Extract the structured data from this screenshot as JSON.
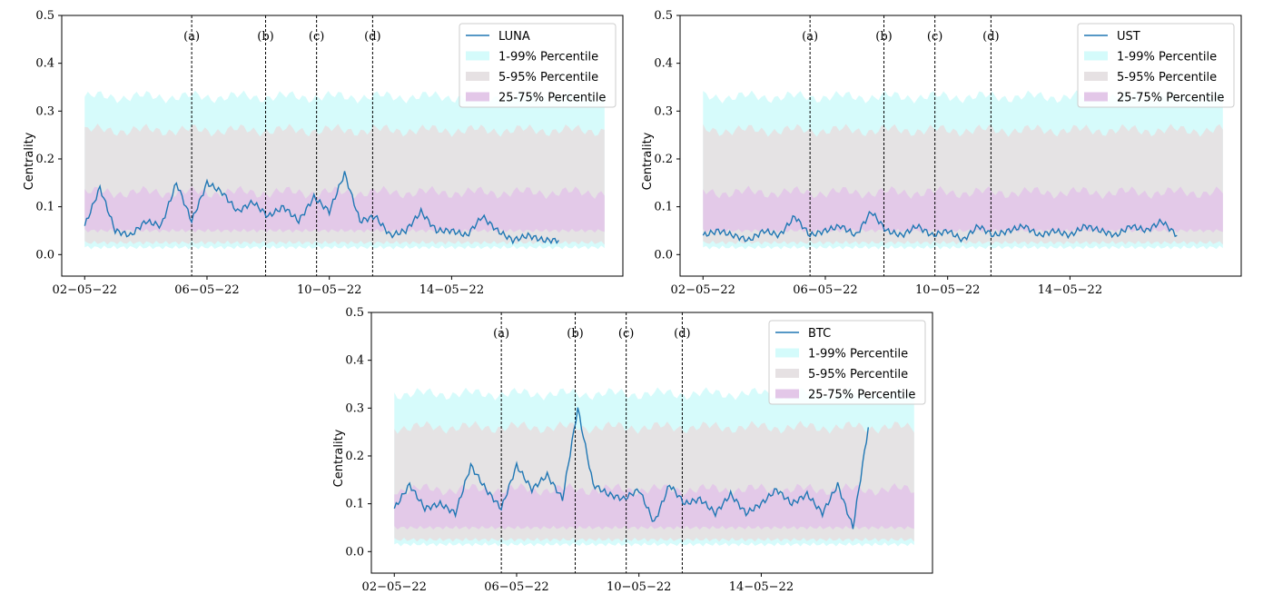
{
  "chart_data": [
    {
      "type": "line",
      "ylabel": "Centrality",
      "ylim": [
        0.0,
        0.5
      ],
      "xlim_days": [
        0,
        17
      ],
      "yticks": [
        "0.0",
        "0.1",
        "0.2",
        "0.3",
        "0.4",
        "0.5"
      ],
      "xticks": [
        {
          "label": "02−05−22",
          "date": "2022-05-02"
        },
        {
          "label": "06−05−22",
          "date": "2022-05-06"
        },
        {
          "label": "10−05−22",
          "date": "2022-05-10"
        },
        {
          "label": "14−05−22",
          "date": "2022-05-14"
        }
      ],
      "events": [
        {
          "label": "(a)",
          "date": "2022-05-05 12:00"
        },
        {
          "label": "(b)",
          "date": "2022-05-07 22:00"
        },
        {
          "label": "(c)",
          "date": "2022-05-09 14:00"
        },
        {
          "label": "(d)",
          "date": "2022-05-11 10:00"
        }
      ],
      "bands": [
        {
          "name": "1-99% Percentile",
          "color": "#d4fbfb",
          "lower": 0.015,
          "upper": 0.33
        },
        {
          "name": "5-95% Percentile",
          "color": "#e6e1e3",
          "lower": 0.025,
          "upper": 0.26
        },
        {
          "name": "25-75% Percentile",
          "color": "#e3c7e8",
          "lower": 0.05,
          "upper": 0.13
        }
      ],
      "legend": "top-right",
      "series": [
        {
          "name": "LUNA",
          "color": "#1f77b4",
          "x": [
            "2022-05-02",
            "2022-05-02 12:00",
            "2022-05-03",
            "2022-05-03 12:00",
            "2022-05-04",
            "2022-05-04 12:00",
            "2022-05-05",
            "2022-05-05 12:00",
            "2022-05-06",
            "2022-05-06 12:00",
            "2022-05-07",
            "2022-05-07 12:00",
            "2022-05-08",
            "2022-05-08 12:00",
            "2022-05-09",
            "2022-05-09 12:00",
            "2022-05-10",
            "2022-05-10 12:00",
            "2022-05-11",
            "2022-05-11 12:00",
            "2022-05-12",
            "2022-05-12 12:00",
            "2022-05-13",
            "2022-05-13 12:00",
            "2022-05-14",
            "2022-05-14 12:00",
            "2022-05-15",
            "2022-05-15 12:00",
            "2022-05-16",
            "2022-05-16 12:00",
            "2022-05-17",
            "2022-05-17 12:00"
          ],
          "y": [
            0.06,
            0.14,
            0.05,
            0.04,
            0.07,
            0.06,
            0.15,
            0.07,
            0.15,
            0.13,
            0.09,
            0.11,
            0.08,
            0.1,
            0.07,
            0.12,
            0.09,
            0.17,
            0.07,
            0.08,
            0.04,
            0.05,
            0.09,
            0.05,
            0.05,
            0.04,
            0.08,
            0.05,
            0.03,
            0.04,
            0.03,
            0.03
          ]
        }
      ]
    },
    {
      "type": "line",
      "ylabel": "Centrality",
      "ylim": [
        0.0,
        0.5
      ],
      "xlim_days": [
        0,
        17
      ],
      "yticks": [
        "0.0",
        "0.1",
        "0.2",
        "0.3",
        "0.4",
        "0.5"
      ],
      "xticks": [
        {
          "label": "02−05−22",
          "date": "2022-05-02"
        },
        {
          "label": "06−05−22",
          "date": "2022-05-06"
        },
        {
          "label": "10−05−22",
          "date": "2022-05-10"
        },
        {
          "label": "14−05−22",
          "date": "2022-05-14"
        }
      ],
      "events": [
        {
          "label": "(a)",
          "date": "2022-05-05 12:00"
        },
        {
          "label": "(b)",
          "date": "2022-05-07 22:00"
        },
        {
          "label": "(c)",
          "date": "2022-05-09 14:00"
        },
        {
          "label": "(d)",
          "date": "2022-05-11 10:00"
        }
      ],
      "bands": [
        {
          "name": "1-99% Percentile",
          "color": "#d4fbfb",
          "lower": 0.015,
          "upper": 0.33
        },
        {
          "name": "5-95% Percentile",
          "color": "#e6e1e3",
          "lower": 0.025,
          "upper": 0.26
        },
        {
          "name": "25-75% Percentile",
          "color": "#e3c7e8",
          "lower": 0.05,
          "upper": 0.13
        }
      ],
      "legend": "top-right",
      "series": [
        {
          "name": "UST",
          "color": "#1f77b4",
          "x": [
            "2022-05-02",
            "2022-05-02 12:00",
            "2022-05-03",
            "2022-05-03 12:00",
            "2022-05-04",
            "2022-05-04 12:00",
            "2022-05-05",
            "2022-05-05 12:00",
            "2022-05-06",
            "2022-05-06 12:00",
            "2022-05-07",
            "2022-05-07 12:00",
            "2022-05-08",
            "2022-05-08 12:00",
            "2022-05-09",
            "2022-05-09 12:00",
            "2022-05-10",
            "2022-05-10 12:00",
            "2022-05-11",
            "2022-05-11 12:00",
            "2022-05-12",
            "2022-05-12 12:00",
            "2022-05-13",
            "2022-05-13 12:00",
            "2022-05-14",
            "2022-05-14 12:00",
            "2022-05-15",
            "2022-05-15 12:00",
            "2022-05-16",
            "2022-05-16 12:00",
            "2022-05-17",
            "2022-05-17 12:00"
          ],
          "y": [
            0.04,
            0.05,
            0.04,
            0.03,
            0.05,
            0.04,
            0.08,
            0.04,
            0.05,
            0.06,
            0.04,
            0.09,
            0.05,
            0.04,
            0.06,
            0.04,
            0.05,
            0.03,
            0.06,
            0.04,
            0.05,
            0.06,
            0.04,
            0.05,
            0.04,
            0.06,
            0.05,
            0.04,
            0.06,
            0.05,
            0.07,
            0.04
          ]
        }
      ]
    },
    {
      "type": "line",
      "ylabel": "Centrality",
      "ylim": [
        0.0,
        0.5
      ],
      "xlim_days": [
        0,
        17
      ],
      "yticks": [
        "0.0",
        "0.1",
        "0.2",
        "0.3",
        "0.4",
        "0.5"
      ],
      "xticks": [
        {
          "label": "02−05−22",
          "date": "2022-05-02"
        },
        {
          "label": "06−05−22",
          "date": "2022-05-06"
        },
        {
          "label": "10−05−22",
          "date": "2022-05-10"
        },
        {
          "label": "14−05−22",
          "date": "2022-05-14"
        }
      ],
      "events": [
        {
          "label": "(a)",
          "date": "2022-05-05 12:00"
        },
        {
          "label": "(b)",
          "date": "2022-05-07 22:00"
        },
        {
          "label": "(c)",
          "date": "2022-05-09 14:00"
        },
        {
          "label": "(d)",
          "date": "2022-05-11 10:00"
        }
      ],
      "bands": [
        {
          "name": "1-99% Percentile",
          "color": "#d4fbfb",
          "lower": 0.015,
          "upper": 0.33
        },
        {
          "name": "5-95% Percentile",
          "color": "#e6e1e3",
          "lower": 0.025,
          "upper": 0.26
        },
        {
          "name": "25-75% Percentile",
          "color": "#e3c7e8",
          "lower": 0.05,
          "upper": 0.13
        }
      ],
      "legend": "top-right",
      "series": [
        {
          "name": "BTC",
          "color": "#1f77b4",
          "x": [
            "2022-05-02",
            "2022-05-02 12:00",
            "2022-05-03",
            "2022-05-03 12:00",
            "2022-05-04",
            "2022-05-04 12:00",
            "2022-05-05",
            "2022-05-05 12:00",
            "2022-05-06",
            "2022-05-06 12:00",
            "2022-05-07",
            "2022-05-07 12:00",
            "2022-05-08",
            "2022-05-08 12:00",
            "2022-05-09",
            "2022-05-09 12:00",
            "2022-05-10",
            "2022-05-10 12:00",
            "2022-05-11",
            "2022-05-11 12:00",
            "2022-05-12",
            "2022-05-12 12:00",
            "2022-05-13",
            "2022-05-13 12:00",
            "2022-05-14",
            "2022-05-14 12:00",
            "2022-05-15",
            "2022-05-15 12:00",
            "2022-05-16",
            "2022-05-16 12:00",
            "2022-05-17",
            "2022-05-17 12:00"
          ],
          "y": [
            0.09,
            0.14,
            0.09,
            0.1,
            0.08,
            0.18,
            0.13,
            0.09,
            0.18,
            0.13,
            0.16,
            0.11,
            0.3,
            0.14,
            0.12,
            0.11,
            0.13,
            0.06,
            0.14,
            0.1,
            0.11,
            0.08,
            0.12,
            0.08,
            0.1,
            0.13,
            0.1,
            0.12,
            0.08,
            0.14,
            0.05,
            0.26
          ]
        }
      ]
    }
  ]
}
